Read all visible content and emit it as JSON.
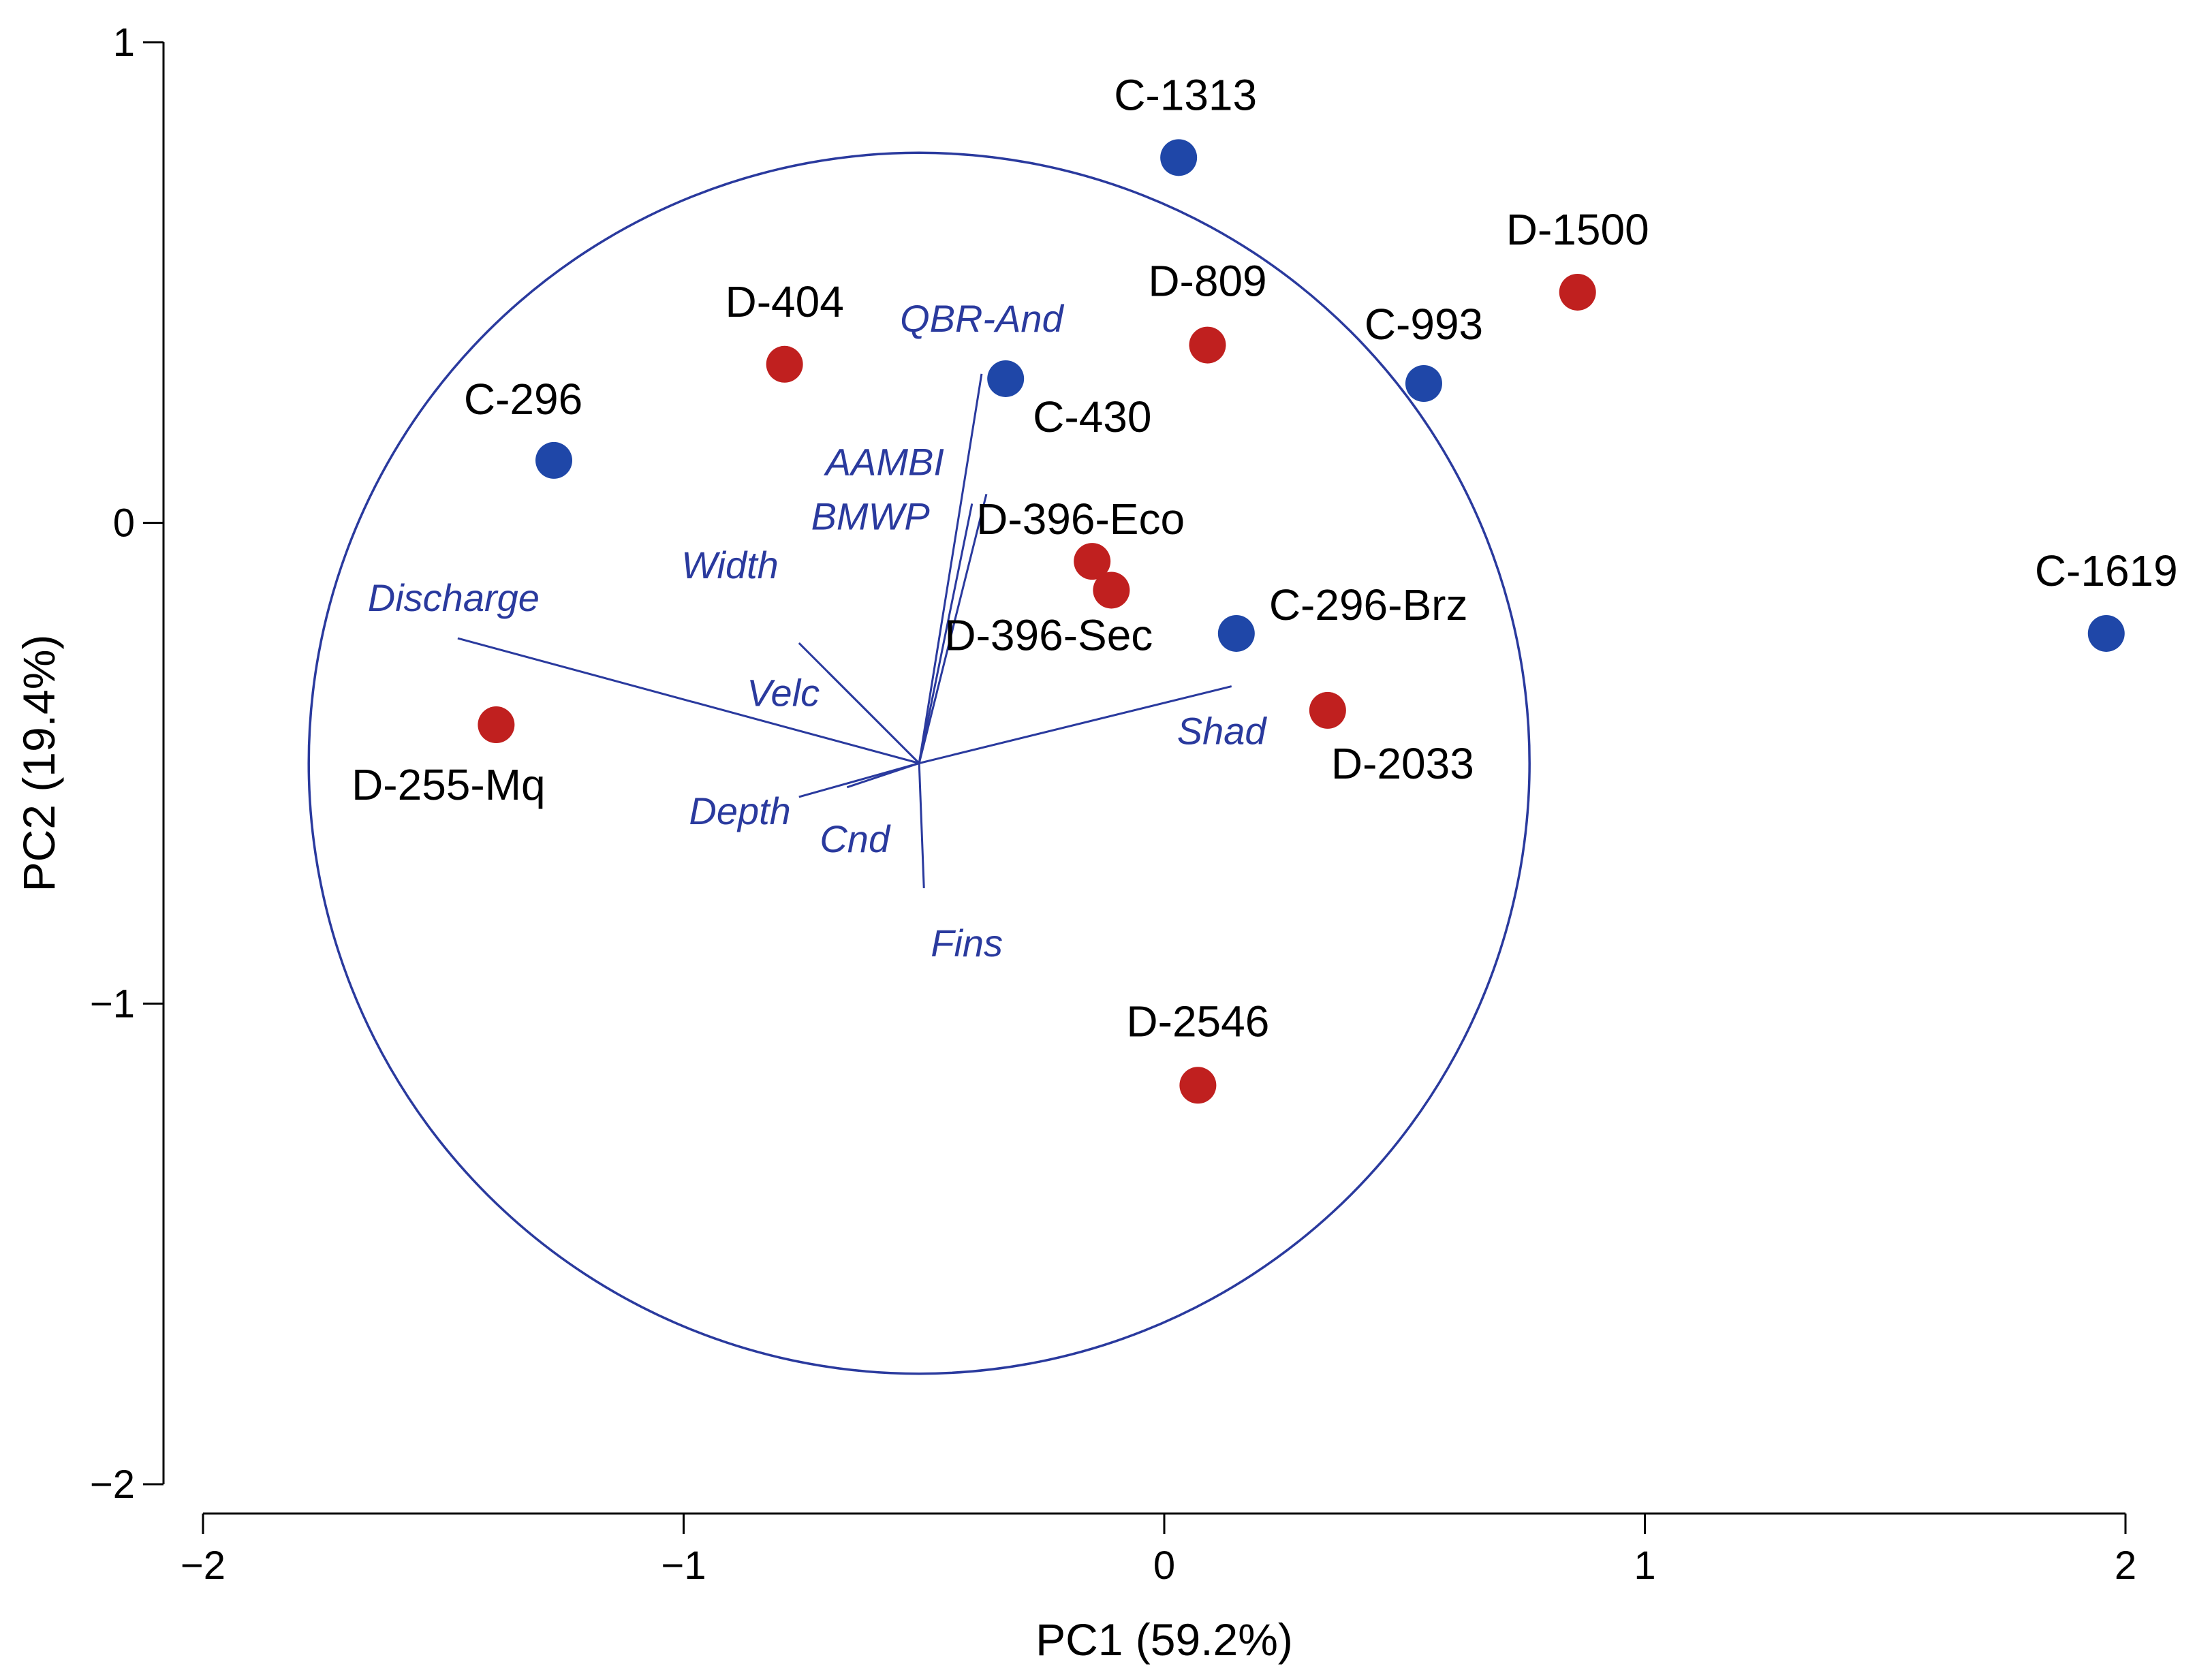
{
  "chart_data": {
    "type": "scatter",
    "title": "",
    "xlabel": "PC1 (59.2%)",
    "ylabel": "PC2 (19.4%)",
    "xlim": [
      -2,
      2
    ],
    "ylim": [
      -2,
      1
    ],
    "x_ticks": [
      "−2",
      "−1",
      "0",
      "1",
      "2"
    ],
    "y_ticks": [
      "1",
      "0",
      "−1",
      "−2"
    ],
    "grid": false,
    "colors": {
      "C": "#1f47a8",
      "D": "#c0201f",
      "biplot": "#2a3a9e"
    },
    "points": [
      {
        "label": "C-1313",
        "group": "C",
        "x": 0.03,
        "y": 0.76
      },
      {
        "label": "D-1500",
        "group": "D",
        "x": 0.86,
        "y": 0.48
      },
      {
        "label": "D-404",
        "group": "D",
        "x": -0.79,
        "y": 0.33
      },
      {
        "label": "D-809",
        "group": "D",
        "x": 0.09,
        "y": 0.37
      },
      {
        "label": "C-993",
        "group": "C",
        "x": 0.54,
        "y": 0.29
      },
      {
        "label": "C-430",
        "group": "C",
        "x": -0.33,
        "y": 0.3
      },
      {
        "label": "C-296",
        "group": "C",
        "x": -1.27,
        "y": 0.13
      },
      {
        "label": "D-396-Eco",
        "group": "D",
        "x": -0.15,
        "y": -0.08
      },
      {
        "label": "D-396-Sec",
        "group": "D",
        "x": -0.11,
        "y": -0.14
      },
      {
        "label": "C-296-Brz",
        "group": "C",
        "x": 0.15,
        "y": -0.23
      },
      {
        "label": "C-1619",
        "group": "C",
        "x": 1.96,
        "y": -0.23
      },
      {
        "label": "D-255-Mq",
        "group": "D",
        "x": -1.39,
        "y": -0.42
      },
      {
        "label": "D-2033",
        "group": "D",
        "x": 0.34,
        "y": -0.39
      },
      {
        "label": "D-2546",
        "group": "D",
        "x": 0.07,
        "y": -1.17
      }
    ],
    "correlation_circle": {
      "center": [
        -0.51,
        -0.5
      ],
      "radius": 1.27
    },
    "variables": [
      {
        "label": "QBR-And",
        "x": -0.38,
        "y": 0.31
      },
      {
        "label": "AAMBI",
        "x": -0.37,
        "y": 0.06
      },
      {
        "label": "BMWP",
        "x": -0.4,
        "y": 0.04
      },
      {
        "label": "Discharge",
        "x": -1.47,
        "y": -0.24
      },
      {
        "label": "Width",
        "x": -0.76,
        "y": -0.25
      },
      {
        "label": "Velc",
        "x": -0.7,
        "y": -0.31
      },
      {
        "label": "Shad",
        "x": 0.14,
        "y": -0.34
      },
      {
        "label": "Depth",
        "x": -0.76,
        "y": -0.57
      },
      {
        "label": "Cnd",
        "x": -0.66,
        "y": -0.55
      },
      {
        "label": "Fins",
        "x": -0.5,
        "y": -0.76
      }
    ]
  }
}
